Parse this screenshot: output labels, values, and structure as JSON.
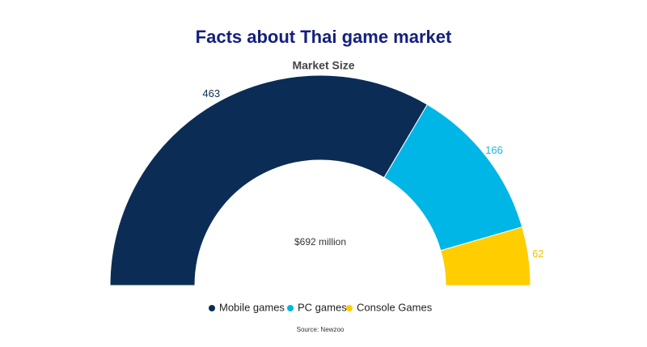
{
  "chart_data": {
    "type": "pie",
    "shape": "semi-donut",
    "title": "Facts about Thai game market",
    "subtitle": "Market Size",
    "center_label": "$692 million",
    "categories": [
      "Mobile games",
      "PC games",
      "Console Games"
    ],
    "values": [
      463,
      166,
      62
    ],
    "colors": [
      "#0b2d55",
      "#00b6e6",
      "#ffcd00"
    ],
    "label_colors": [
      "#0b2d55",
      "#1fb3e0",
      "#f0c400"
    ],
    "source": "Source: Newzoo"
  }
}
